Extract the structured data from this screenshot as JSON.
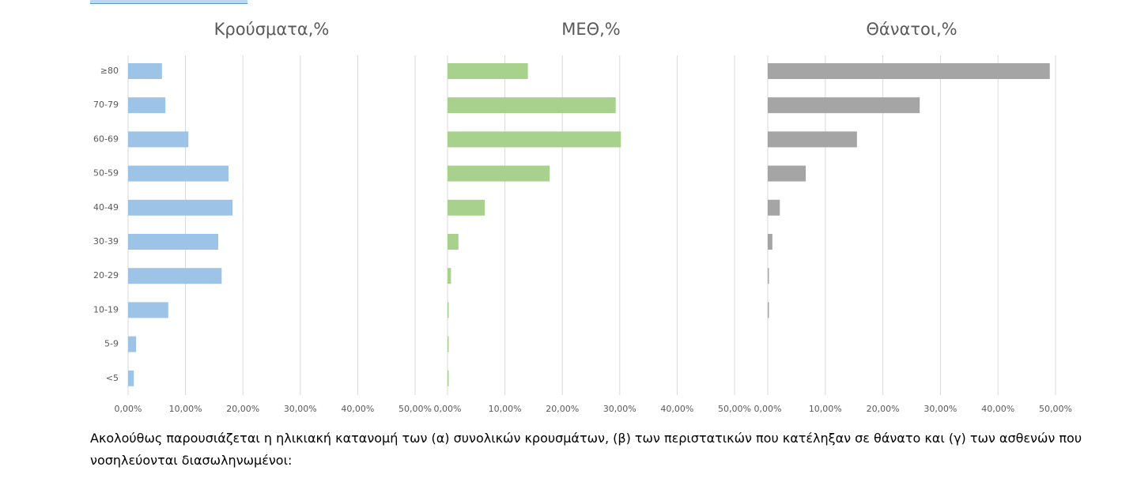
{
  "chart_data": [
    {
      "type": "barh",
      "title": "Κρούσματα,%",
      "color": "#9dc3e6",
      "categories": [
        "≥80",
        "70-79",
        "60-69",
        "50-59",
        "40-49",
        "30-39",
        "20-29",
        "10-19",
        "5-9",
        "<5"
      ],
      "values": [
        5.9,
        6.5,
        10.5,
        17.5,
        18.2,
        15.7,
        16.3,
        7.0,
        1.4,
        1.0
      ],
      "xlim": [
        0,
        50
      ],
      "xticks": [
        {
          "value": 0,
          "label": "0,00%"
        },
        {
          "value": 10,
          "label": "10,00%"
        },
        {
          "value": 20,
          "label": "20,00%"
        },
        {
          "value": 30,
          "label": "30,00%"
        },
        {
          "value": 40,
          "label": "40,00%"
        },
        {
          "value": 50,
          "label": "50,00%"
        }
      ],
      "grid": true
    },
    {
      "type": "barh",
      "title": "ΜΕΘ,%",
      "color": "#a9d18e",
      "values": [
        14.0,
        29.3,
        30.2,
        17.8,
        6.5,
        1.9,
        0.6,
        0.2,
        0.2,
        0.2
      ],
      "xlim": [
        0,
        50
      ],
      "xticks": [
        {
          "value": 0,
          "label": "0,00%"
        },
        {
          "value": 10,
          "label": "10,00%"
        },
        {
          "value": 20,
          "label": "20,00%"
        },
        {
          "value": 30,
          "label": "30,00%"
        },
        {
          "value": 40,
          "label": "40,00%"
        },
        {
          "value": 50,
          "label": "50,00%"
        }
      ],
      "grid": true
    },
    {
      "type": "barh",
      "title": "Θάνατοι,%",
      "color": "#a5a5a5",
      "values": [
        49.0,
        26.4,
        15.5,
        6.6,
        2.1,
        0.8,
        0.2,
        0.2,
        0,
        0
      ],
      "xlim": [
        0,
        50
      ],
      "xticks": [
        {
          "value": 0,
          "label": "0,00%"
        },
        {
          "value": 10,
          "label": "10,00%"
        },
        {
          "value": 20,
          "label": "20,00%"
        },
        {
          "value": 30,
          "label": "30,00%"
        },
        {
          "value": 40,
          "label": "40,00%"
        },
        {
          "value": 50,
          "label": "50,00%"
        }
      ],
      "grid": true
    }
  ],
  "caption": "Ακολούθως παρουσιάζεται η ηλικιακή κατανομή των (α) συνολικών κρουσμάτων, (β) των περιστατικών που κατέληξαν σε θάνατο και (γ) των ασθενών που νοσηλεύονται διασωληνωμένοι:"
}
